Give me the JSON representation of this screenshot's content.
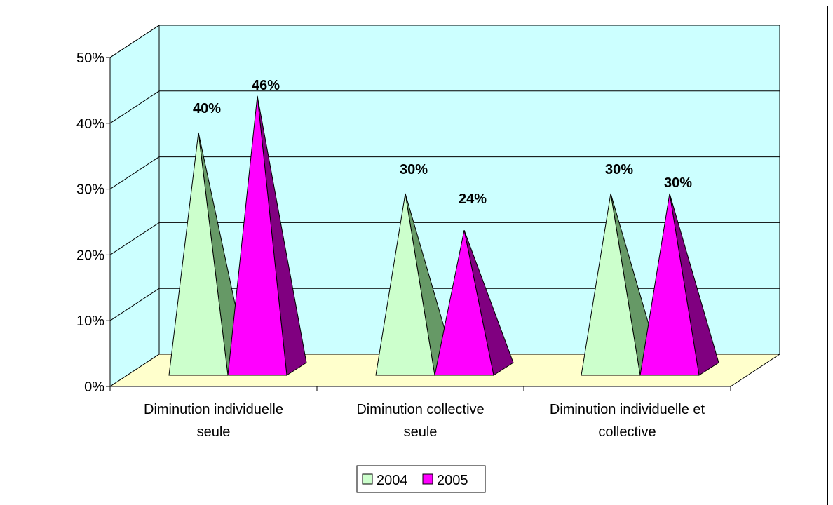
{
  "chart_data": {
    "type": "bar",
    "style": "3d-pyramid",
    "categories": [
      [
        "Diminution individuelle",
        "seule"
      ],
      [
        "Diminution collective",
        "seule"
      ],
      [
        "Diminution individuelle et",
        "collective"
      ]
    ],
    "series": [
      {
        "name": "2004",
        "values": [
          40,
          30,
          30
        ],
        "labels": [
          "40%",
          "30%",
          "30%"
        ],
        "color": "#ccffcc",
        "side_color": "#669966"
      },
      {
        "name": "2005",
        "values": [
          46,
          24,
          30
        ],
        "labels": [
          "46%",
          "24%",
          "30%"
        ],
        "color": "#ff00ff",
        "side_color": "#800080"
      }
    ],
    "ylim": [
      0,
      50
    ],
    "yticks": [
      "0%",
      "10%",
      "20%",
      "30%",
      "40%",
      "50%"
    ],
    "wall_color": "#ccffff",
    "floor_color": "#ffffcc",
    "grid": true,
    "legend_position": "bottom-center"
  }
}
